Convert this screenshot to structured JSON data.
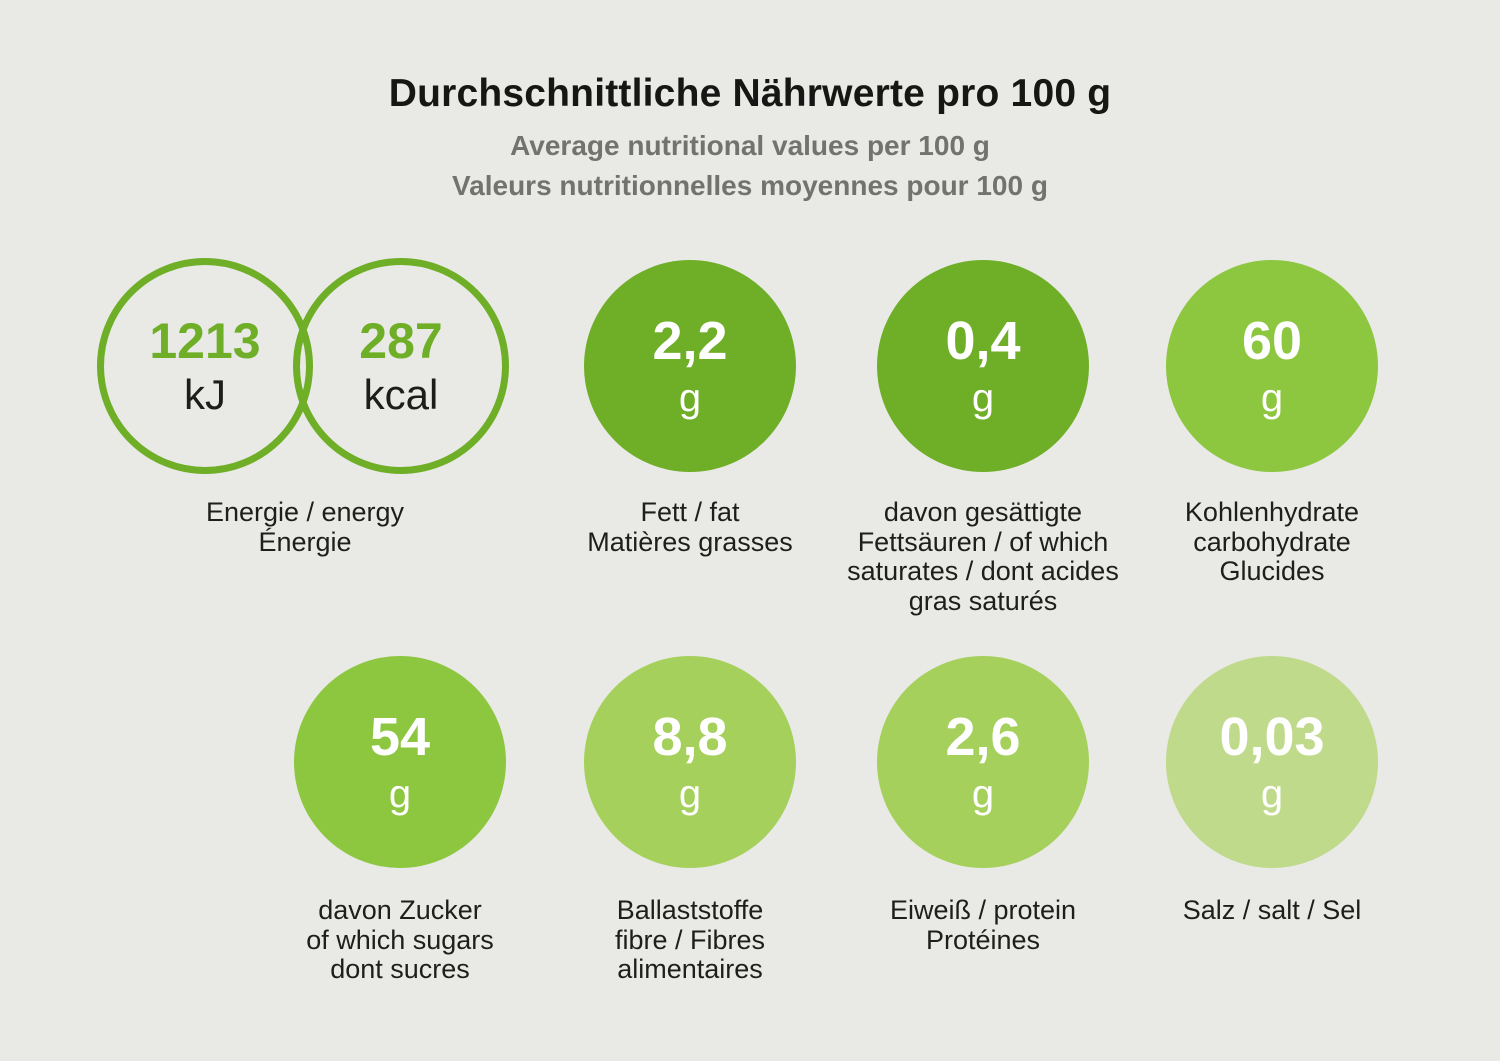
{
  "header": {
    "title": "Durchschnittliche Nährwerte pro 100 g",
    "subtitle_en": "Average nutritional values per 100 g",
    "subtitle_fr": "Valeurs nutritionnelles moyennes pour 100 g"
  },
  "energy": {
    "kj_value": "1213",
    "kj_unit": "kJ",
    "kcal_value": "287",
    "kcal_unit": "kcal",
    "label": "Energie / energy\nÉnergie"
  },
  "nutrients": [
    {
      "value": "2,2",
      "unit": "g",
      "color": "#6fae27",
      "label": "Fett / fat\nMatières grasses"
    },
    {
      "value": "0,4",
      "unit": "g",
      "color": "#6fae27",
      "label": "davon gesättigte\nFettsäuren / of which\nsaturates / dont acides\ngras saturés"
    },
    {
      "value": "60",
      "unit": "g",
      "color": "#8dc63f",
      "label": "Kohlenhydrate\ncarbohydrate\nGlucides"
    },
    {
      "value": "54",
      "unit": "g",
      "color": "#8dc63f",
      "label": "davon Zucker\nof which sugars\ndont sucres"
    },
    {
      "value": "8,8",
      "unit": "g",
      "color": "#a6d05c",
      "label": "Ballaststoffe\nfibre / Fibres\nalimentaires"
    },
    {
      "value": "2,6",
      "unit": "g",
      "color": "#a6d05c",
      "label": "Eiweiß / protein\nProtéines"
    },
    {
      "value": "0,03",
      "unit": "g",
      "color": "#c0da8c",
      "label": "Salz / salt / Sel"
    }
  ],
  "colors": {
    "background": "#e9e9e6",
    "green_dark": "#6fae27",
    "green_mid": "#8dc63f",
    "green_light": "#a6d05c",
    "green_lighter": "#c0da8c",
    "ring_stroke": "#6fae27",
    "value_green": "#6fae27",
    "text_dark": "#1e1e1c",
    "subtitle_gray": "#72726f"
  },
  "chart_data": {
    "type": "table",
    "title": "Durchschnittliche Nährwerte pro 100 g",
    "subtitles": [
      "Average nutritional values per 100 g",
      "Valeurs nutritionnelles moyennes pour 100 g"
    ],
    "per": "100 g",
    "rows": [
      {
        "nutrient": "Energie / energy / Énergie",
        "value_kJ": 1213,
        "value_kcal": 287
      },
      {
        "nutrient": "Fett / fat / Matières grasses",
        "value_g": 2.2
      },
      {
        "nutrient": "davon gesättigte Fettsäuren / of which saturates / dont acides gras saturés",
        "value_g": 0.4
      },
      {
        "nutrient": "Kohlenhydrate / carbohydrate / Glucides",
        "value_g": 60
      },
      {
        "nutrient": "davon Zucker / of which sugars / dont sucres",
        "value_g": 54
      },
      {
        "nutrient": "Ballaststoffe / fibre / Fibres alimentaires",
        "value_g": 8.8
      },
      {
        "nutrient": "Eiweiß / protein / Protéines",
        "value_g": 2.6
      },
      {
        "nutrient": "Salz / salt / Sel",
        "value_g": 0.03
      }
    ]
  }
}
